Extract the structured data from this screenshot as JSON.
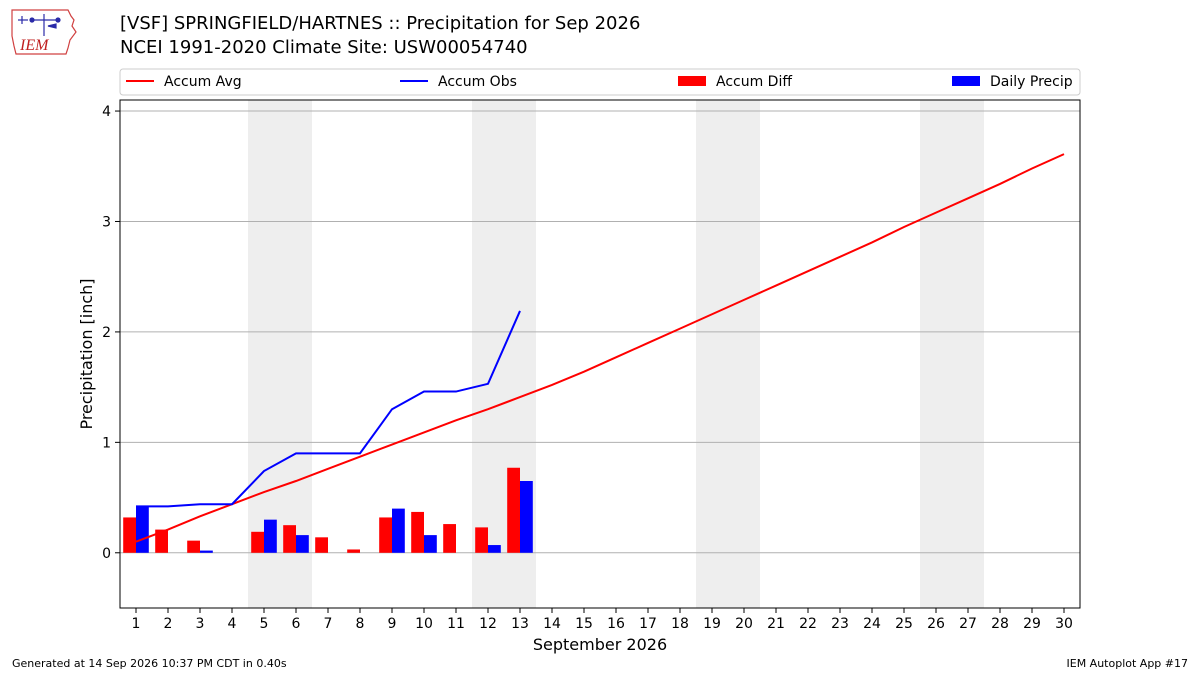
{
  "header": {
    "title_line1": "[VSF] SPRINGFIELD/HARTNES :: Precipitation for Sep 2026",
    "title_line2": "NCEI 1991-2020 Climate Site: USW00054740",
    "logo_text": "IEM"
  },
  "footer": {
    "generated": "Generated at 14 Sep 2026 10:37 PM CDT in 0.40s",
    "app": "IEM Autoplot App #17"
  },
  "chart_data": {
    "type": "bar",
    "xlabel": "September 2026",
    "ylabel": "Precipitation [inch]",
    "x": [
      1,
      2,
      3,
      4,
      5,
      6,
      7,
      8,
      9,
      10,
      11,
      12,
      13,
      14,
      15,
      16,
      17,
      18,
      19,
      20,
      21,
      22,
      23,
      24,
      25,
      26,
      27,
      28,
      29,
      30
    ],
    "xlim": [
      0.5,
      30.5
    ],
    "ylim": [
      -0.5,
      4.1
    ],
    "yticks": [
      0,
      1,
      2,
      3,
      4
    ],
    "grid": true,
    "legend_position": "top",
    "weekend_shading": [
      [
        4.5,
        6.5
      ],
      [
        11.5,
        13.5
      ],
      [
        18.5,
        20.5
      ],
      [
        25.5,
        27.5
      ]
    ],
    "legend": [
      {
        "label": "Accum Avg",
        "kind": "line",
        "color": "#ff0000"
      },
      {
        "label": "Accum Obs",
        "kind": "line",
        "color": "#0000ff"
      },
      {
        "label": "Accum Diff",
        "kind": "bar",
        "color": "#ff0000"
      },
      {
        "label": "Daily Precip",
        "kind": "bar",
        "color": "#0000ff"
      }
    ],
    "series": [
      {
        "name": "Accum Avg",
        "type": "line",
        "color": "#ff0000",
        "x": [
          1,
          2,
          3,
          4,
          5,
          6,
          7,
          8,
          9,
          10,
          11,
          12,
          13,
          14,
          15,
          16,
          17,
          18,
          19,
          20,
          21,
          22,
          23,
          24,
          25,
          26,
          27,
          28,
          29,
          30
        ],
        "values": [
          0.1,
          0.21,
          0.33,
          0.44,
          0.55,
          0.65,
          0.76,
          0.87,
          0.98,
          1.09,
          1.2,
          1.3,
          1.41,
          1.52,
          1.64,
          1.77,
          1.9,
          2.03,
          2.16,
          2.29,
          2.42,
          2.55,
          2.68,
          2.81,
          2.95,
          3.08,
          3.21,
          3.34,
          3.48,
          3.61
        ]
      },
      {
        "name": "Accum Obs",
        "type": "line",
        "color": "#0000ff",
        "x": [
          1,
          2,
          3,
          4,
          5,
          6,
          7,
          8,
          9,
          10,
          11,
          12,
          13
        ],
        "values": [
          0.42,
          0.42,
          0.44,
          0.44,
          0.74,
          0.9,
          0.9,
          0.9,
          1.3,
          1.46,
          1.46,
          1.53,
          2.19
        ]
      },
      {
        "name": "Accum Diff",
        "type": "bar",
        "color": "#ff0000",
        "x": [
          1,
          2,
          3,
          4,
          5,
          6,
          7,
          8,
          9,
          10,
          11,
          12,
          13
        ],
        "values": [
          0.32,
          0.21,
          0.11,
          0.0,
          0.19,
          0.25,
          0.14,
          0.03,
          0.32,
          0.37,
          0.26,
          0.23,
          0.77
        ]
      },
      {
        "name": "Daily Precip",
        "type": "bar",
        "color": "#0000ff",
        "x": [
          1,
          2,
          3,
          4,
          5,
          6,
          7,
          8,
          9,
          10,
          11,
          12,
          13
        ],
        "values": [
          0.42,
          0.0,
          0.02,
          0.0,
          0.3,
          0.16,
          0.0,
          0.0,
          0.4,
          0.16,
          0.0,
          0.07,
          0.65
        ]
      }
    ]
  }
}
